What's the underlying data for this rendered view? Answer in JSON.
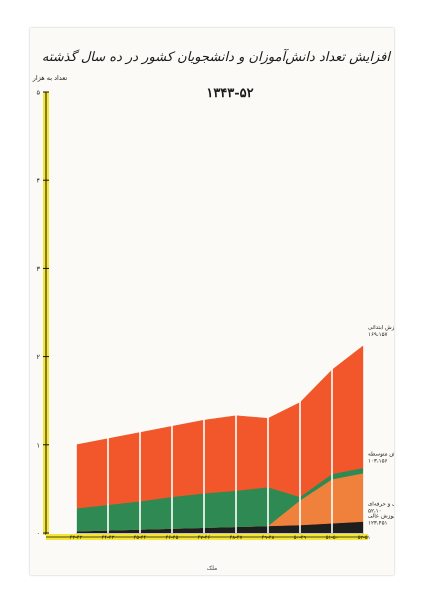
{
  "chart_data": {
    "type": "area",
    "title": "افزایش تعداد دانش‌آموزان و دانشجویان کشور در ده سال گذشته",
    "subtitle": "۱۳۴۳-۵۲",
    "ylabel": "تعداد به هزار",
    "ylim": [
      0,
      5
    ],
    "y_ticks": [
      "۰",
      "۱",
      "۲",
      "۳",
      "۴",
      "۵"
    ],
    "stacked": true,
    "grid": false,
    "categories": [
      "۴۳-۴۲",
      "۴۴-۴۳",
      "۴۵-۴۴",
      "۴۶-۴۵",
      "۴۷-۴۶",
      "۴۸-۴۷",
      "۴۹-۴۸",
      "۵۰-۴۹",
      "۵۱-۵۰",
      "۵۲-۵۱"
    ],
    "series": [
      {
        "name": "آموزش عالی",
        "color": "#1e1e1e",
        "values": [
          0.02,
          0.03,
          0.04,
          0.05,
          0.06,
          0.07,
          0.08,
          0.09,
          0.11,
          0.13
        ]
      },
      {
        "name": "آموزش فنی و حرفه‌ای",
        "color": "#f0813c",
        "values": [
          0,
          0,
          0,
          0,
          0,
          0,
          0,
          0.28,
          0.5,
          0.55
        ]
      },
      {
        "name": "آموزش متوسطه",
        "color": "#2e8a52",
        "values": [
          0.26,
          0.29,
          0.32,
          0.36,
          0.39,
          0.41,
          0.44,
          0.04,
          0.06,
          0.06
        ]
      },
      {
        "name": "آموزش ابتدائی",
        "color": "#f2562b",
        "values": [
          0.72,
          0.75,
          0.78,
          0.8,
          0.83,
          0.85,
          0.78,
          1.07,
          1.18,
          1.39
        ]
      }
    ],
    "end_labels": [
      {
        "series": "آموزش ابتدائی",
        "text": "۱۶۹،۱۵۷"
      },
      {
        "series": "آموزش متوسطه",
        "text": "۱۰۳،۱۵۶"
      },
      {
        "series": "آموزش فنی و حرفه‌ای",
        "text": "۵۲،۱۰"
      },
      {
        "series": "آموزش عالی",
        "text": "۱۲۳،۴۵۱"
      }
    ]
  },
  "footer_note": "ملک"
}
